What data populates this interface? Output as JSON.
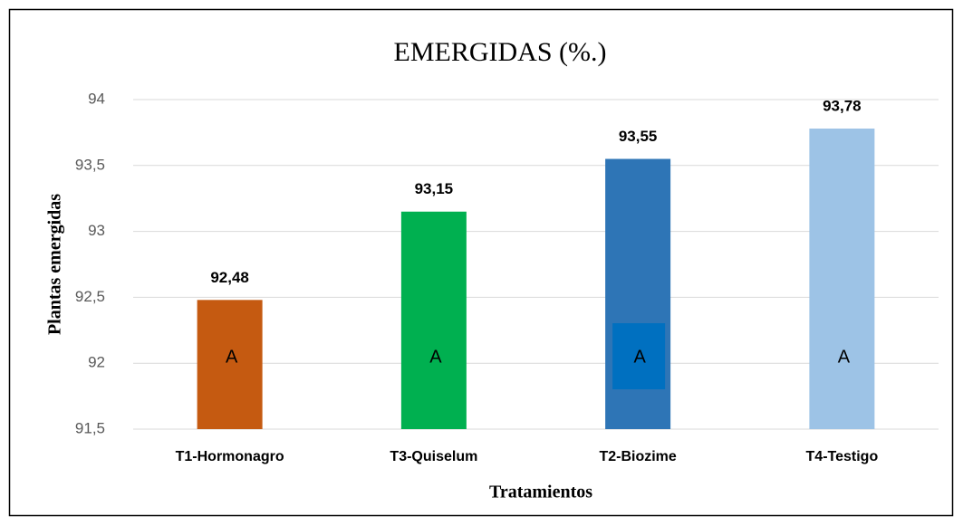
{
  "chart_data": {
    "type": "bar",
    "title": "EMERGIDAS (%.)",
    "xlabel": "Tratamientos",
    "ylabel": "Plantas emergidas",
    "categories": [
      "T1-Hormonagro",
      "T3-Quiselum",
      "T2-Biozime",
      "T4-Testigo"
    ],
    "values": [
      92.48,
      93.15,
      93.55,
      93.78
    ],
    "value_labels": [
      "92,48",
      "93,15",
      "93,55",
      "93,78"
    ],
    "colors": [
      "#c55a11",
      "#00b050",
      "#2e75b6",
      "#9dc3e6"
    ],
    "annotations": [
      "A",
      "A",
      "A",
      "A"
    ],
    "ylim": [
      91.5,
      94
    ],
    "yticks": [
      {
        "value": 91.5,
        "label": "91,5"
      },
      92,
      {
        "value": 92.5,
        "label": "92,5"
      },
      93,
      {
        "value": 93.5,
        "label": "93,5"
      },
      94
    ],
    "grid": true
  }
}
